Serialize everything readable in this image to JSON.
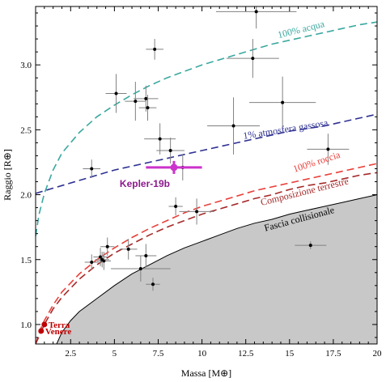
{
  "chart_data": {
    "type": "scatter",
    "title": "",
    "xlabel": "Massa [M⊕]",
    "ylabel": "Raggio [R⊕]",
    "xlim": [
      0.5,
      20
    ],
    "ylim": [
      0.85,
      3.45
    ],
    "xticks": [
      "2.5",
      "5",
      "7.5",
      "10",
      "12.5",
      "15",
      "17.5",
      "20"
    ],
    "xtick_values": [
      2.5,
      5,
      7.5,
      10,
      12.5,
      15,
      17.5,
      20
    ],
    "yticks": [
      "1.0",
      "1.5",
      "2.0",
      "2.5",
      "3.0"
    ],
    "ytick_values": [
      1.0,
      1.5,
      2.0,
      2.5,
      3.0
    ],
    "grid": false,
    "curves": [
      {
        "label": "100% acqua",
        "color": "#3aa8a0",
        "label_x": 15.7,
        "label_y": 3.25,
        "label_angle": -14,
        "points": [
          [
            0.5,
            1.68
          ],
          [
            0.7,
            1.85
          ],
          [
            1.0,
            2.01
          ],
          [
            1.5,
            2.19
          ],
          [
            2,
            2.32
          ],
          [
            3,
            2.48
          ],
          [
            4,
            2.6
          ],
          [
            5,
            2.69
          ],
          [
            6,
            2.77
          ],
          [
            7,
            2.84
          ],
          [
            8,
            2.9
          ],
          [
            9,
            2.95
          ],
          [
            10,
            3.0
          ],
          [
            11,
            3.04
          ],
          [
            12,
            3.08
          ],
          [
            13,
            3.12
          ],
          [
            14,
            3.16
          ],
          [
            15,
            3.19
          ],
          [
            16,
            3.22
          ],
          [
            17,
            3.25
          ],
          [
            18,
            3.28
          ],
          [
            19,
            3.31
          ],
          [
            20,
            3.33
          ]
        ]
      },
      {
        "label": "1% atmosfera gassosa",
        "color": "#2e3192",
        "label_x": 14.8,
        "label_y": 2.48,
        "label_angle": -9,
        "points": [
          [
            0.5,
            2.01
          ],
          [
            1,
            2.03
          ],
          [
            2,
            2.07
          ],
          [
            3,
            2.11
          ],
          [
            4,
            2.15
          ],
          [
            5,
            2.19
          ],
          [
            6,
            2.22
          ],
          [
            7,
            2.25
          ],
          [
            8,
            2.28
          ],
          [
            9,
            2.31
          ],
          [
            10,
            2.34
          ],
          [
            11,
            2.37
          ],
          [
            12,
            2.4
          ],
          [
            13,
            2.43
          ],
          [
            14,
            2.46
          ],
          [
            15,
            2.49
          ],
          [
            16,
            2.51
          ],
          [
            17,
            2.53
          ],
          [
            18,
            2.56
          ],
          [
            19,
            2.59
          ],
          [
            20,
            2.62
          ]
        ]
      },
      {
        "label": "100% roccia",
        "color": "#e8403a",
        "label_x": 16.6,
        "label_y": 2.23,
        "label_angle": -18,
        "points": [
          [
            0.5,
            0.85
          ],
          [
            0.8,
            0.97
          ],
          [
            1,
            1.03
          ],
          [
            1.5,
            1.15
          ],
          [
            2,
            1.25
          ],
          [
            3,
            1.39
          ],
          [
            4,
            1.5
          ],
          [
            5,
            1.59
          ],
          [
            6,
            1.67
          ],
          [
            7,
            1.74
          ],
          [
            8,
            1.8
          ],
          [
            9,
            1.86
          ],
          [
            10,
            1.91
          ],
          [
            11,
            1.95
          ],
          [
            12,
            1.99
          ],
          [
            13,
            2.03
          ],
          [
            14,
            2.06
          ],
          [
            15,
            2.09
          ],
          [
            16,
            2.12
          ],
          [
            17,
            2.15
          ],
          [
            18,
            2.18
          ],
          [
            19,
            2.21
          ],
          [
            20,
            2.24
          ]
        ]
      },
      {
        "label": "Composizione terrestre",
        "color": "#a52a2a",
        "label_x": 15.9,
        "label_y": 2.0,
        "label_angle": -14,
        "points": [
          [
            0.5,
            0.85
          ],
          [
            0.8,
            0.94
          ],
          [
            1,
            1.0
          ],
          [
            1.5,
            1.12
          ],
          [
            2,
            1.21
          ],
          [
            3,
            1.35
          ],
          [
            4,
            1.46
          ],
          [
            5,
            1.55
          ],
          [
            6,
            1.62
          ],
          [
            7,
            1.69
          ],
          [
            8,
            1.75
          ],
          [
            9,
            1.8
          ],
          [
            10,
            1.85
          ],
          [
            11,
            1.89
          ],
          [
            12,
            1.93
          ],
          [
            13,
            1.97
          ],
          [
            14,
            2.0
          ],
          [
            15,
            2.04
          ],
          [
            16,
            2.07
          ],
          [
            17,
            2.09
          ],
          [
            18,
            2.12
          ],
          [
            19,
            2.15
          ],
          [
            20,
            2.17
          ]
        ]
      }
    ],
    "collision_region": {
      "label": "Fascia collisionale",
      "color": "#c8c8c8",
      "label_x": 15.6,
      "label_y": 1.79,
      "label_angle": -15,
      "boundary": [
        [
          1.7,
          0.85
        ],
        [
          2,
          0.94
        ],
        [
          2.5,
          1.03
        ],
        [
          3,
          1.1
        ],
        [
          4,
          1.2
        ],
        [
          5,
          1.3
        ],
        [
          6,
          1.39
        ],
        [
          7,
          1.46
        ],
        [
          8,
          1.53
        ],
        [
          9,
          1.59
        ],
        [
          10,
          1.64
        ],
        [
          11,
          1.69
        ],
        [
          12,
          1.74
        ],
        [
          13,
          1.78
        ],
        [
          14,
          1.81
        ],
        [
          15,
          1.85
        ],
        [
          16,
          1.88
        ],
        [
          17,
          1.91
        ],
        [
          18,
          1.94
        ],
        [
          19,
          1.97
        ],
        [
          20,
          2.0
        ]
      ]
    },
    "points": [
      {
        "x": 13.1,
        "y": 3.41,
        "xerr": 2.3,
        "yerr": 0.13
      },
      {
        "x": 7.3,
        "y": 3.12,
        "xerr": 0.5,
        "yerr": 0.08
      },
      {
        "x": 12.9,
        "y": 3.05,
        "xerr": 1.5,
        "yerr": 0.15
      },
      {
        "x": 5.1,
        "y": 2.78,
        "xerr": 0.6,
        "yerr": 0.15
      },
      {
        "x": 6.2,
        "y": 2.72,
        "xerr": 0.6,
        "yerr": 0.15
      },
      {
        "x": 6.8,
        "y": 2.74,
        "xerr": 0.7,
        "yerr": 0.1
      },
      {
        "x": 6.9,
        "y": 2.67,
        "xerr": 0.5,
        "yerr": 0.1
      },
      {
        "x": 14.6,
        "y": 2.71,
        "xerr": 1.9,
        "yerr": 0.2
      },
      {
        "x": 11.8,
        "y": 2.53,
        "xerr": 1.5,
        "yerr": 0.22
      },
      {
        "x": 7.6,
        "y": 2.43,
        "xerr": 0.9,
        "yerr": 0.12
      },
      {
        "x": 8.2,
        "y": 2.34,
        "xerr": 0.8,
        "yerr": 0.1
      },
      {
        "x": 17.2,
        "y": 2.35,
        "xerr": 1.2,
        "yerr": 0.12
      },
      {
        "x": 3.7,
        "y": 2.2,
        "xerr": 0.5,
        "yerr": 0.07
      },
      {
        "x": 8.9,
        "y": 2.21,
        "xerr": 0.7,
        "yerr": 0.1
      },
      {
        "x": 8.5,
        "y": 1.91,
        "xerr": 0.4,
        "yerr": 0.07
      },
      {
        "x": 9.7,
        "y": 1.87,
        "xerr": 1.0,
        "yerr": 0.1
      },
      {
        "x": 4.6,
        "y": 1.6,
        "xerr": 0.4,
        "yerr": 0.07
      },
      {
        "x": 4.2,
        "y": 1.52,
        "xerr": 0.4,
        "yerr": 0.07
      },
      {
        "x": 4.4,
        "y": 1.49,
        "xerr": 0.4,
        "yerr": 0.07
      },
      {
        "x": 4.3,
        "y": 1.5,
        "xerr": 0.4,
        "yerr": 0.06
      },
      {
        "x": 3.7,
        "y": 1.48,
        "xerr": 0.4,
        "yerr": 0.06
      },
      {
        "x": 5.8,
        "y": 1.58,
        "xerr": 0.5,
        "yerr": 0.08
      },
      {
        "x": 6.8,
        "y": 1.53,
        "xerr": 0.6,
        "yerr": 0.09
      },
      {
        "x": 6.5,
        "y": 1.43,
        "xerr": 1.7,
        "yerr": 0.1
      },
      {
        "x": 7.2,
        "y": 1.31,
        "xerr": 0.4,
        "yerr": 0.05
      },
      {
        "x": 16.2,
        "y": 1.61,
        "xerr": 0.9,
        "yerr": 0.03
      }
    ],
    "highlight": {
      "label": "Kepler-19b",
      "x": 8.4,
      "y": 2.21,
      "xerr": 1.6,
      "yerr": 0.05,
      "color": "#cc33cc",
      "label_color": "#8b1a8b"
    },
    "solar_system": [
      {
        "label": "Terra",
        "x": 1.0,
        "y": 1.0,
        "color": "#c00000"
      },
      {
        "label": "Venere",
        "x": 0.815,
        "y": 0.95,
        "color": "#c00000"
      }
    ]
  }
}
